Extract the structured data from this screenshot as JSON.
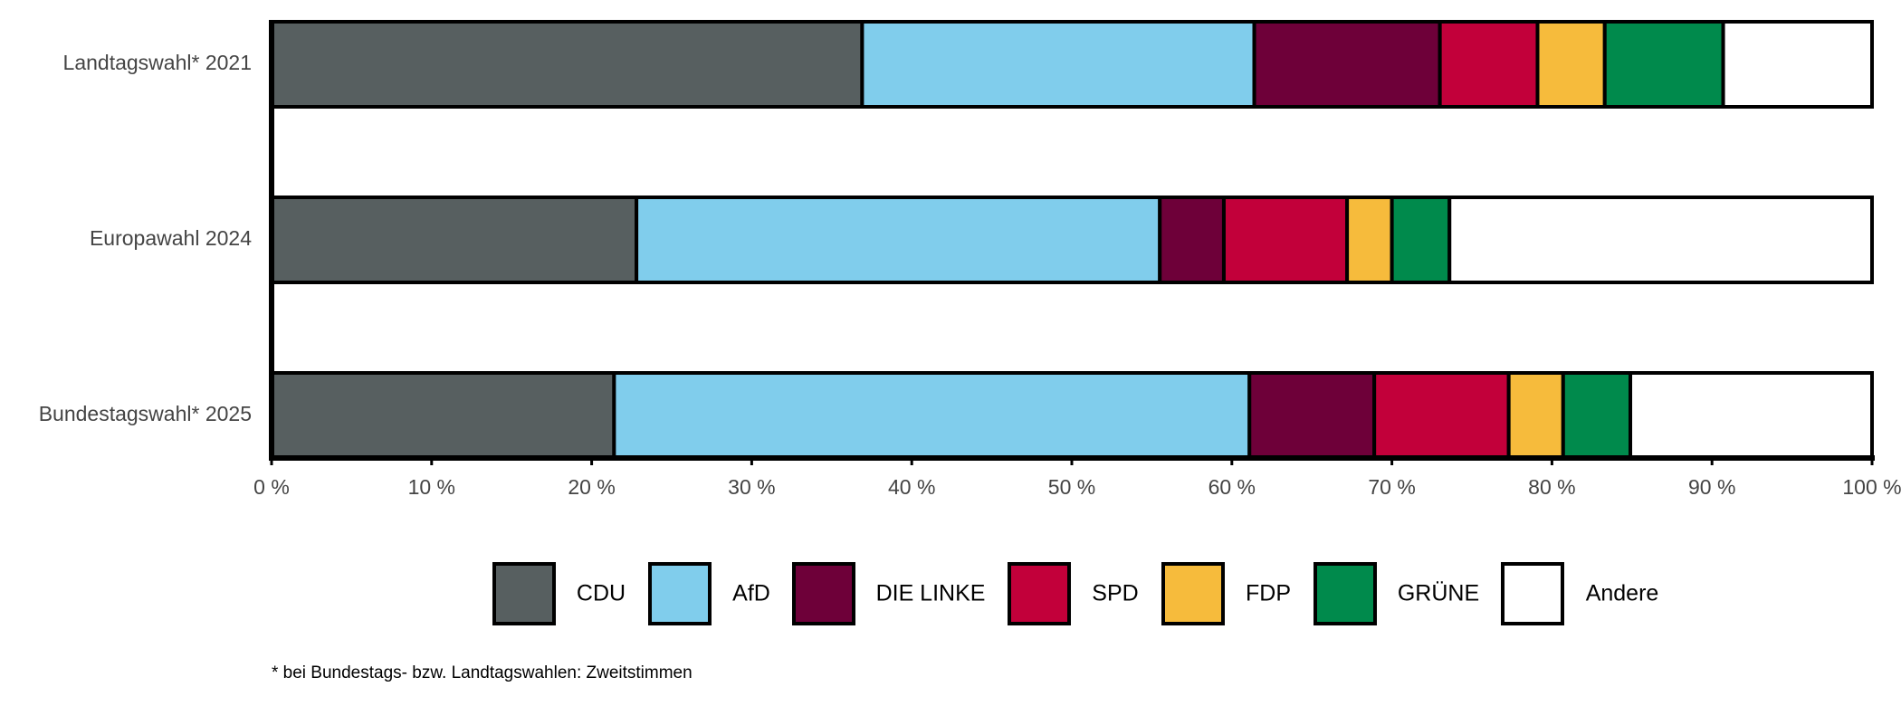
{
  "chart_data": {
    "type": "stacked-bar-horizontal",
    "categories": [
      "Landtagswahl* 2021",
      "Europawahl 2024",
      "Bundestagswahl* 2025"
    ],
    "series": [
      {
        "name": "CDU",
        "color": "#575f60",
        "values": [
          36.9,
          22.8,
          21.4
        ]
      },
      {
        "name": "AfD",
        "color": "#80cdec",
        "values": [
          24.5,
          32.7,
          39.7
        ]
      },
      {
        "name": "DIE LINKE",
        "color": "#6e0039",
        "values": [
          11.6,
          4.0,
          7.8
        ]
      },
      {
        "name": "SPD",
        "color": "#c2003a",
        "values": [
          6.1,
          7.7,
          8.4
        ]
      },
      {
        "name": "FDP",
        "color": "#f6bb3c",
        "values": [
          4.2,
          2.8,
          3.4
        ]
      },
      {
        "name": "GRÜNE",
        "color": "#008a4c",
        "values": [
          7.4,
          3.6,
          4.2
        ]
      },
      {
        "name": "Andere",
        "color": "#ffffff",
        "values": [
          9.3,
          26.4,
          15.1
        ]
      }
    ],
    "xlim": [
      0,
      100
    ],
    "xticks": [
      {
        "value": 0,
        "label": "0 %"
      },
      {
        "value": 10,
        "label": "10 %"
      },
      {
        "value": 20,
        "label": "20 %"
      },
      {
        "value": 30,
        "label": "30 %"
      },
      {
        "value": 40,
        "label": "40 %"
      },
      {
        "value": 50,
        "label": "50 %"
      },
      {
        "value": 60,
        "label": "60 %"
      },
      {
        "value": 70,
        "label": "70 %"
      },
      {
        "value": 80,
        "label": "80 %"
      },
      {
        "value": 90,
        "label": "90 %"
      },
      {
        "value": 100,
        "label": "100 %"
      }
    ],
    "legend": "bottom",
    "footnote": "* bei Bundestags- bzw. Landtagswahlen: Zweitstimmen"
  }
}
